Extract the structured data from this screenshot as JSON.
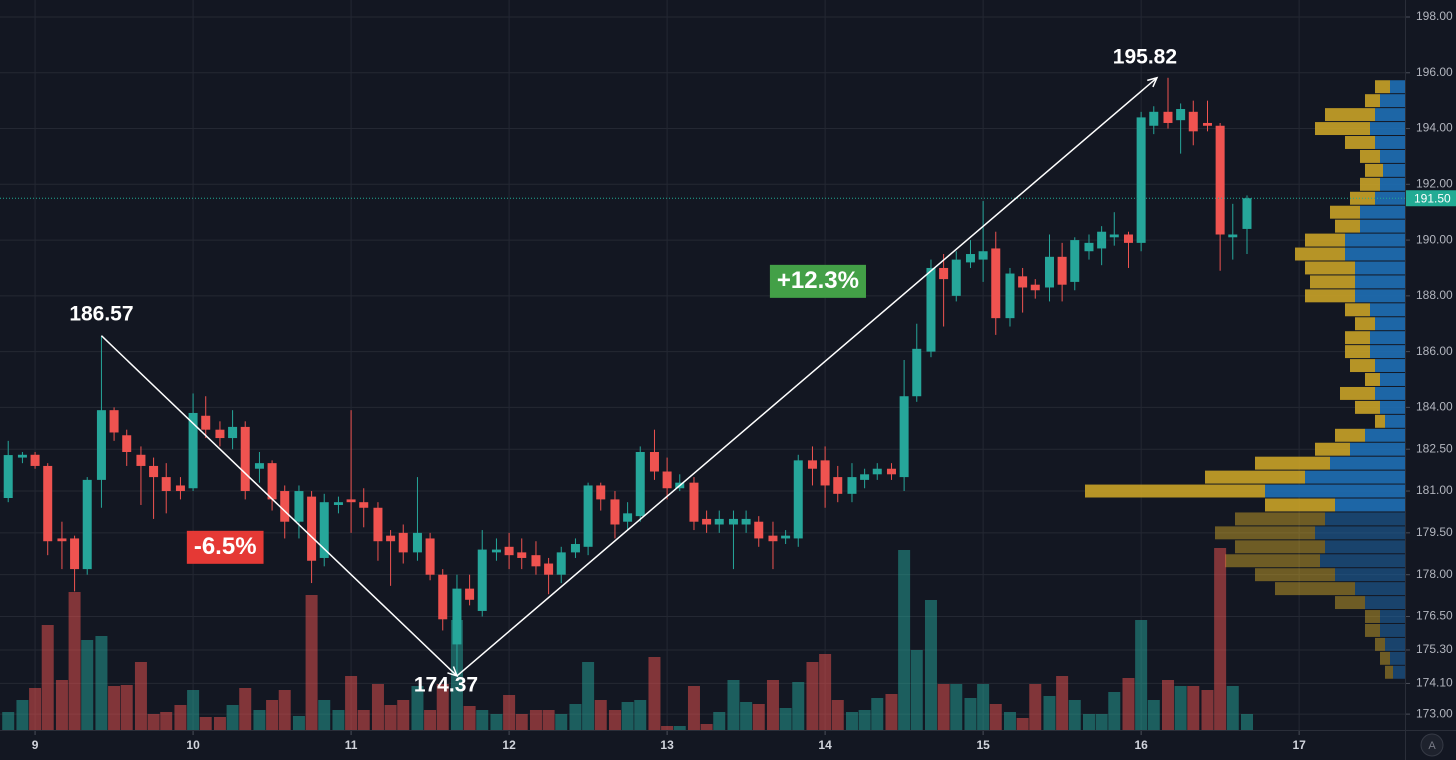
{
  "chart_data": {
    "type": "candlestick",
    "xlim": [
      8.778,
      17.67
    ],
    "xticks": [
      9,
      10,
      11,
      12,
      13,
      14,
      15,
      16,
      17
    ],
    "ylim": [
      172.43,
      198.61
    ],
    "yticks": [
      {
        "value": 198,
        "label": "198.00"
      },
      {
        "value": 196,
        "label": "196.00"
      },
      {
        "value": 194,
        "label": "194.00"
      },
      {
        "value": 192,
        "label": "192.00"
      },
      {
        "value": 190,
        "label": "190.00"
      },
      {
        "value": 188,
        "label": "188.00"
      },
      {
        "value": 186,
        "label": "186.00"
      },
      {
        "value": 184,
        "label": "184.00"
      },
      {
        "value": 182.5,
        "label": "182.50"
      },
      {
        "value": 181,
        "label": "181.00"
      },
      {
        "value": 179.5,
        "label": "179.50"
      },
      {
        "value": 178,
        "label": "178.00"
      },
      {
        "value": 176.5,
        "label": "176.50"
      },
      {
        "value": 175.3,
        "label": "175.30"
      },
      {
        "value": 174.1,
        "label": "174.10"
      },
      {
        "value": 173,
        "label": "173.00"
      }
    ],
    "grid": true,
    "colors": {
      "up": "#26a69a",
      "down": "#ef5350",
      "profile_blue": "#1f6fb5",
      "profile_yellow": "#c9a227",
      "grid": "#242833",
      "last_price": "#22ab94"
    },
    "candles": {
      "x": [
        8.83,
        8.92,
        9.0,
        9.08,
        9.17,
        9.25,
        9.33,
        9.42,
        9.5,
        9.58,
        9.67,
        9.75,
        9.83,
        9.92,
        10.0,
        10.08,
        10.17,
        10.25,
        10.33,
        10.42,
        10.5,
        10.58,
        10.67,
        10.75,
        10.83,
        10.92,
        11.0,
        11.08,
        11.17,
        11.25,
        11.33,
        11.42,
        11.5,
        11.58,
        11.67,
        11.75,
        11.83,
        11.92,
        12.0,
        12.08,
        12.17,
        12.25,
        12.33,
        12.42,
        12.5,
        12.58,
        12.67,
        12.75,
        12.83,
        12.92,
        13.0,
        13.08,
        13.17,
        13.25,
        13.33,
        13.42,
        13.5,
        13.58,
        13.67,
        13.75,
        13.83,
        13.92,
        14.0,
        14.08,
        14.17,
        14.25,
        14.33,
        14.42,
        14.5,
        14.58,
        14.67,
        14.75,
        14.83,
        14.92,
        15.0,
        15.08,
        15.17,
        15.25,
        15.33,
        15.42,
        15.5,
        15.58,
        15.67,
        15.75,
        15.83,
        15.92,
        16.0,
        16.08,
        16.17,
        16.25,
        16.33,
        16.42,
        16.5,
        16.58,
        16.67
      ],
      "open": [
        180.75,
        182.2,
        182.3,
        181.9,
        179.3,
        179.3,
        178.2,
        181.4,
        183.9,
        183.0,
        182.3,
        181.9,
        181.5,
        181.2,
        181.1,
        183.7,
        183.2,
        182.9,
        183.3,
        181.8,
        182.0,
        181.0,
        179.9,
        180.8,
        178.6,
        180.5,
        180.7,
        180.6,
        180.4,
        179.4,
        179.5,
        178.8,
        179.3,
        178.0,
        175.5,
        177.5,
        176.7,
        178.8,
        179.0,
        178.8,
        178.7,
        178.4,
        178.0,
        178.8,
        179.0,
        181.2,
        180.7,
        179.9,
        180.1,
        182.4,
        181.7,
        181.1,
        181.3,
        180.0,
        179.8,
        179.8,
        179.8,
        179.9,
        179.4,
        179.3,
        179.3,
        182.1,
        182.1,
        181.5,
        180.9,
        181.4,
        181.6,
        181.8,
        181.5,
        184.4,
        186.0,
        189.0,
        188.0,
        189.2,
        189.3,
        189.7,
        187.2,
        188.7,
        188.4,
        188.3,
        189.4,
        188.5,
        189.6,
        189.7,
        190.1,
        190.2,
        189.9,
        194.1,
        194.6,
        194.3,
        194.6,
        194.2,
        194.1,
        190.1,
        190.4
      ],
      "high": [
        182.8,
        182.4,
        182.4,
        182.0,
        179.9,
        179.4,
        181.5,
        186.57,
        184.0,
        183.2,
        182.6,
        182.2,
        182.0,
        181.5,
        184.5,
        184.4,
        183.5,
        183.9,
        183.5,
        182.4,
        182.1,
        181.2,
        181.2,
        181.0,
        180.9,
        180.8,
        183.9,
        181.1,
        180.6,
        179.6,
        179.8,
        181.5,
        179.5,
        178.2,
        178.0,
        178.0,
        179.6,
        179.3,
        179.5,
        179.3,
        179.2,
        178.6,
        179.0,
        179.3,
        181.3,
        181.3,
        181.0,
        180.6,
        182.6,
        183.2,
        182.2,
        181.6,
        181.5,
        180.3,
        180.3,
        180.3,
        180.3,
        180.1,
        179.9,
        179.6,
        182.3,
        182.6,
        182.6,
        181.9,
        182.0,
        181.8,
        182.0,
        182.0,
        185.7,
        187.0,
        189.3,
        189.5,
        189.6,
        190.0,
        191.4,
        190.3,
        189.0,
        189.0,
        188.6,
        190.2,
        189.9,
        190.1,
        190.2,
        190.5,
        191.0,
        190.3,
        194.6,
        194.8,
        195.82,
        194.9,
        195.0,
        195.0,
        194.2,
        191.3,
        191.6
      ],
      "low": [
        180.6,
        182.0,
        181.8,
        178.7,
        178.2,
        177.4,
        178.0,
        180.4,
        182.8,
        181.9,
        180.5,
        180.0,
        180.2,
        180.7,
        181.0,
        182.9,
        182.6,
        182.5,
        180.7,
        181.3,
        180.3,
        179.3,
        179.3,
        177.7,
        178.3,
        180.2,
        179.5,
        179.7,
        178.5,
        177.6,
        178.4,
        178.5,
        177.8,
        176.0,
        174.37,
        176.9,
        176.5,
        178.5,
        178.2,
        178.2,
        178.0,
        177.3,
        177.7,
        178.6,
        178.7,
        180.3,
        179.3,
        179.6,
        179.9,
        181.4,
        180.7,
        181.0,
        179.6,
        179.5,
        179.5,
        178.2,
        179.5,
        179.0,
        178.2,
        179.1,
        179.0,
        181.2,
        180.4,
        180.6,
        180.6,
        181.1,
        181.4,
        181.4,
        181.0,
        184.2,
        185.8,
        186.9,
        187.8,
        189.0,
        188.5,
        186.6,
        186.9,
        187.4,
        187.9,
        187.8,
        187.8,
        188.2,
        189.3,
        189.1,
        189.8,
        189.0,
        189.6,
        193.8,
        194.0,
        193.1,
        193.4,
        193.9,
        188.9,
        189.3,
        189.5
      ],
      "close": [
        182.29,
        182.3,
        181.9,
        179.2,
        179.2,
        178.2,
        181.4,
        183.9,
        183.1,
        182.4,
        181.9,
        181.5,
        181.0,
        181.0,
        183.8,
        183.2,
        182.9,
        183.3,
        181.0,
        182.0,
        180.7,
        179.9,
        181.0,
        178.5,
        180.6,
        180.6,
        180.6,
        180.4,
        179.2,
        179.2,
        178.8,
        179.5,
        178.0,
        176.4,
        177.5,
        177.1,
        178.9,
        178.9,
        178.7,
        178.6,
        178.3,
        178.0,
        178.8,
        179.1,
        181.2,
        180.7,
        179.8,
        180.2,
        182.4,
        181.7,
        181.1,
        181.3,
        179.9,
        179.8,
        180.0,
        180.0,
        180.0,
        179.3,
        179.2,
        179.4,
        182.1,
        181.8,
        181.2,
        180.9,
        181.5,
        181.6,
        181.8,
        181.6,
        184.4,
        186.1,
        189.0,
        188.6,
        189.3,
        189.5,
        189.6,
        187.2,
        188.8,
        188.3,
        188.2,
        189.4,
        188.4,
        190.0,
        189.9,
        190.3,
        190.2,
        189.9,
        194.4,
        194.6,
        194.2,
        194.7,
        193.9,
        194.1,
        190.2,
        190.2,
        191.5
      ],
      "volume": [
        18,
        30,
        42,
        105,
        50,
        138,
        90,
        94,
        44,
        45,
        68,
        16,
        18,
        25,
        40,
        13,
        13,
        25,
        42,
        20,
        30,
        40,
        14,
        135,
        30,
        20,
        54,
        20,
        46,
        25,
        30,
        44,
        20,
        46,
        110,
        24,
        20,
        16,
        35,
        16,
        20,
        20,
        16,
        26,
        68,
        30,
        20,
        28,
        30,
        73,
        4,
        4,
        44,
        6,
        18,
        50,
        28,
        26,
        50,
        22,
        48,
        68,
        76,
        30,
        18,
        20,
        32,
        36,
        180,
        80,
        130,
        46,
        46,
        32,
        46,
        26,
        18,
        12,
        46,
        34,
        54,
        30,
        16,
        16,
        38,
        52,
        110,
        30,
        50,
        44,
        44,
        40,
        182,
        44,
        16
      ]
    },
    "volume_lim": [
      0,
      400
    ],
    "volume_profile": {
      "profile_lim": [
        0,
        380
      ],
      "value_area": [
        180.5,
        196
      ],
      "prices": [
        195.5,
        195,
        194.5,
        194,
        193.5,
        193,
        192.5,
        192,
        191.5,
        191,
        190.5,
        190,
        189.5,
        189,
        188.5,
        188,
        187.5,
        187,
        186.5,
        186,
        185.5,
        185,
        184.5,
        184,
        183.5,
        183,
        182.5,
        182,
        181.5,
        181,
        180.5,
        180,
        179.5,
        179,
        178.5,
        178,
        177.5,
        177,
        176.5,
        176,
        175.5,
        175,
        174.5
      ],
      "blue": [
        15,
        25,
        30,
        35,
        30,
        25,
        22,
        25,
        30,
        45,
        45,
        60,
        60,
        50,
        50,
        50,
        35,
        30,
        35,
        35,
        30,
        25,
        30,
        25,
        20,
        40,
        55,
        75,
        100,
        140,
        70,
        80,
        90,
        80,
        85,
        70,
        50,
        40,
        25,
        25,
        20,
        15,
        12
      ],
      "yellow": [
        15,
        15,
        50,
        55,
        30,
        20,
        18,
        20,
        25,
        30,
        25,
        40,
        50,
        50,
        45,
        50,
        25,
        20,
        25,
        25,
        25,
        15,
        35,
        25,
        10,
        30,
        35,
        75,
        100,
        180,
        70,
        90,
        100,
        90,
        95,
        80,
        80,
        30,
        15,
        15,
        10,
        10,
        8
      ]
    },
    "trend_lines": [
      {
        "start_x": 9.42,
        "start_y": 186.57,
        "end_x": 11.67,
        "end_y": 174.37,
        "change_label": "-6.5%",
        "color": "#e53935"
      },
      {
        "start_x": 11.67,
        "start_y": 174.37,
        "end_x": 16.1,
        "end_y": 195.82,
        "change_label": "+12.3%",
        "color": "#43a047"
      }
    ],
    "last_price": {
      "value": 191.5,
      "label": "191.50"
    }
  },
  "controls": {
    "auto_scale": "A"
  }
}
